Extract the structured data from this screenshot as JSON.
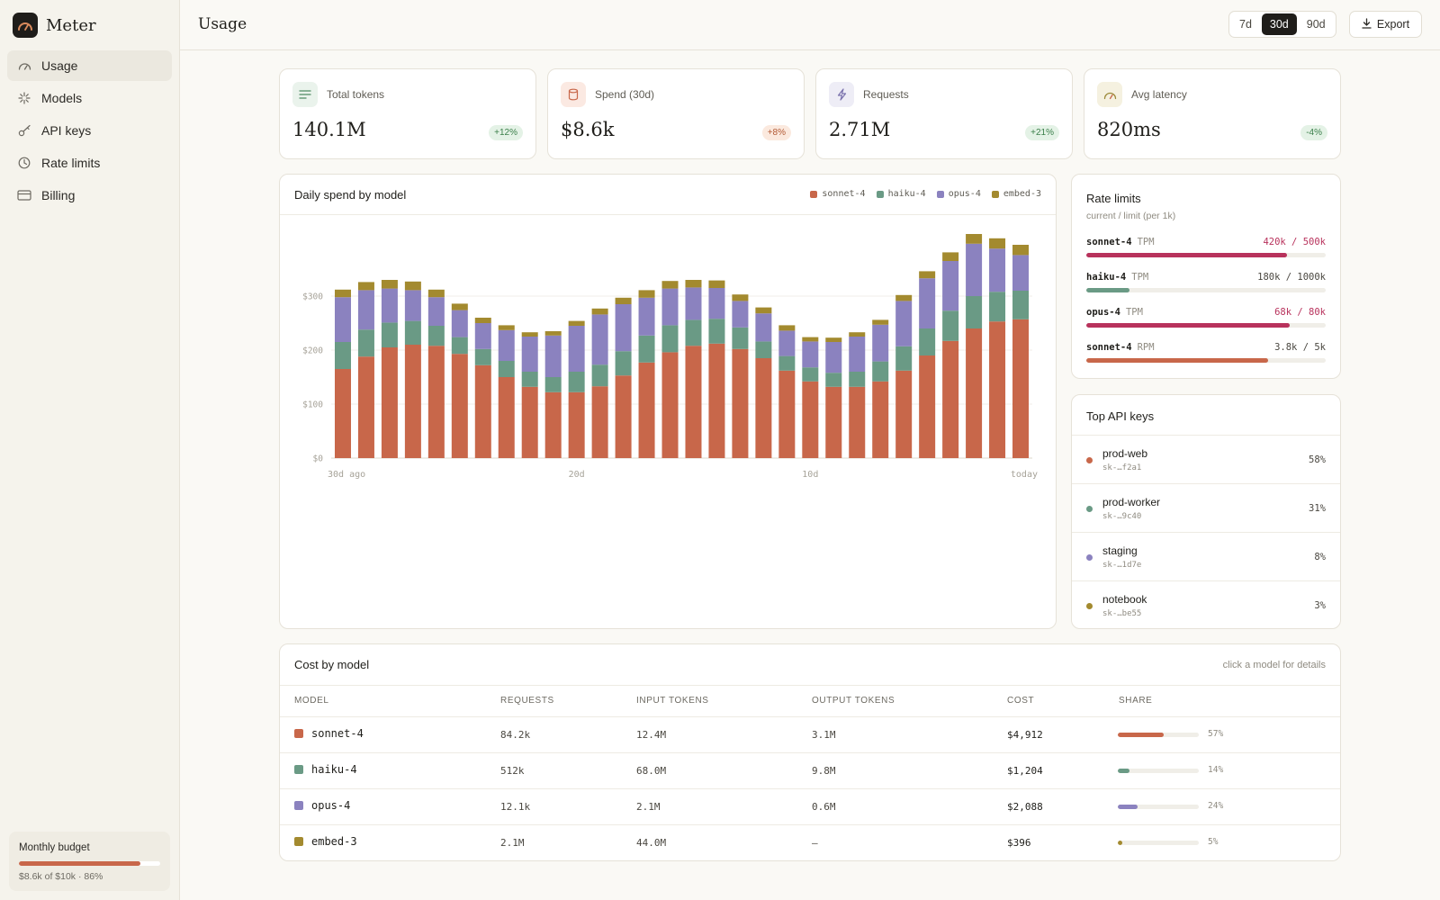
{
  "app": {
    "name": "Meter",
    "logo_icon": "gauge-icon"
  },
  "sidebar": {
    "items": [
      {
        "label": "Usage",
        "icon": "gauge-icon",
        "active": true
      },
      {
        "label": "Models",
        "icon": "sparkle-icon"
      },
      {
        "label": "API keys",
        "icon": "key-icon"
      },
      {
        "label": "Rate limits",
        "icon": "clock-icon"
      },
      {
        "label": "Billing",
        "icon": "credit-card-icon"
      }
    ],
    "budget": {
      "title": "Monthly budget",
      "detail": "$8.6k of $10k · 86%",
      "percent": 86
    }
  },
  "header": {
    "title": "Usage",
    "ranges": [
      "7d",
      "30d",
      "90d"
    ],
    "active_range": "30d",
    "export_label": "Export"
  },
  "stats": [
    {
      "label": "Total tokens",
      "value": "140.1M",
      "delta": "+12%",
      "tone": "green",
      "icon": "lines-icon"
    },
    {
      "label": "Spend (30d)",
      "value": "$8.6k",
      "delta": "+8%",
      "tone": "orange",
      "icon": "database-icon"
    },
    {
      "label": "Requests",
      "value": "2.71M",
      "delta": "+21%",
      "tone": "green",
      "icon": "bolt-icon"
    },
    {
      "label": "Avg latency",
      "value": "820ms",
      "delta": "-4%",
      "tone": "green",
      "icon": "gauge-icon"
    }
  ],
  "chart_data": {
    "type": "bar",
    "stacked": true,
    "title": "Daily spend by model",
    "y_ticks": [
      "$0",
      "$100",
      "$200",
      "$300"
    ],
    "ylim": [
      0,
      400
    ],
    "x_tick_labels": [
      "30d ago",
      "20d",
      "10d",
      "today"
    ],
    "legend_position": "top-right",
    "series": [
      {
        "name": "sonnet-4",
        "color": "#c8674a",
        "values": [
          165,
          188,
          205,
          210,
          208,
          193,
          172,
          150,
          132,
          122,
          122,
          133,
          153,
          177,
          196,
          208,
          212,
          202,
          185,
          162,
          142,
          132,
          132,
          142,
          162,
          190,
          217,
          240,
          253,
          257
        ]
      },
      {
        "name": "haiku-4",
        "color": "#6a9a85",
        "values": [
          50,
          50,
          46,
          44,
          37,
          31,
          30,
          30,
          28,
          28,
          38,
          40,
          45,
          50,
          50,
          48,
          46,
          40,
          31,
          27,
          26,
          26,
          28,
          37,
          45,
          50,
          56,
          60,
          55,
          53
        ]
      },
      {
        "name": "opus-4",
        "color": "#8b82bf",
        "values": [
          83,
          73,
          63,
          57,
          53,
          50,
          48,
          57,
          65,
          77,
          85,
          93,
          87,
          70,
          68,
          60,
          57,
          49,
          52,
          47,
          48,
          57,
          65,
          68,
          84,
          93,
          92,
          97,
          80,
          66
        ]
      },
      {
        "name": "embed-3",
        "color": "#a38a2f",
        "values": [
          14,
          15,
          16,
          16,
          14,
          12,
          10,
          9,
          8,
          8,
          9,
          11,
          12,
          14,
          14,
          14,
          14,
          12,
          11,
          10,
          8,
          8,
          8,
          9,
          11,
          13,
          16,
          18,
          19,
          19
        ]
      }
    ]
  },
  "rate_limits": {
    "title": "Rate limits",
    "subtitle": "current / limit (per 1k)",
    "rows": [
      {
        "model": "sonnet-4",
        "unit": "TPM",
        "value": "420k / 500k",
        "fraction": 0.84,
        "color": "#b8325c",
        "value_color": "#b8325c"
      },
      {
        "model": "haiku-4",
        "unit": "TPM",
        "value": "180k / 1000k",
        "fraction": 0.18,
        "color": "#6a9a85",
        "value_color": "#4a4740"
      },
      {
        "model": "opus-4",
        "unit": "TPM",
        "value": "68k / 80k",
        "fraction": 0.85,
        "color": "#b8325c",
        "value_color": "#b8325c"
      },
      {
        "model": "sonnet-4",
        "unit": "RPM",
        "value": "3.8k / 5k",
        "fraction": 0.76,
        "color": "#c8674a",
        "value_color": "#4a4740"
      }
    ]
  },
  "top_keys": {
    "title": "Top API keys",
    "rows": [
      {
        "name": "prod-web",
        "id": "sk-…f2a1",
        "pct": "58%",
        "color": "#c8674a"
      },
      {
        "name": "prod-worker",
        "id": "sk-…9c40",
        "pct": "31%",
        "color": "#6a9a85"
      },
      {
        "name": "staging",
        "id": "sk-…1d7e",
        "pct": "8%",
        "color": "#8b82bf"
      },
      {
        "name": "notebook",
        "id": "sk-…be55",
        "pct": "3%",
        "color": "#a38a2f"
      }
    ]
  },
  "cost_table": {
    "title": "Cost by model",
    "hint": "click a model for details",
    "columns": [
      "MODEL",
      "REQUESTS",
      "INPUT TOKENS",
      "OUTPUT TOKENS",
      "COST",
      "SHARE"
    ],
    "rows": [
      {
        "model": "sonnet-4",
        "requests": "84.2k",
        "input": "12.4M",
        "output": "3.1M",
        "cost": "$4,912",
        "share": "57%",
        "share_value": 57,
        "color": "#c8674a"
      },
      {
        "model": "haiku-4",
        "requests": "512k",
        "input": "68.0M",
        "output": "9.8M",
        "cost": "$1,204",
        "share": "14%",
        "share_value": 14,
        "color": "#6a9a85"
      },
      {
        "model": "opus-4",
        "requests": "12.1k",
        "input": "2.1M",
        "output": "0.6M",
        "cost": "$2,088",
        "share": "24%",
        "share_value": 24,
        "color": "#8b82bf"
      },
      {
        "model": "embed-3",
        "requests": "2.1M",
        "input": "44.0M",
        "output": "—",
        "cost": "$396",
        "share": "5%",
        "share_value": 5,
        "color": "#a38a2f"
      }
    ]
  }
}
